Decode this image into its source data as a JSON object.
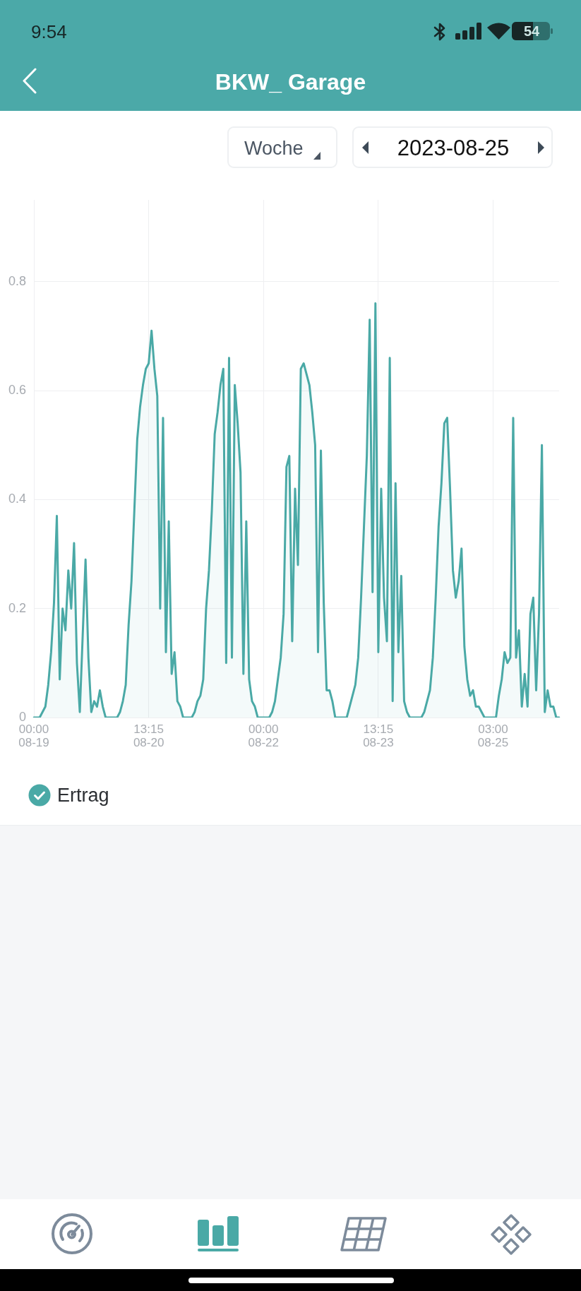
{
  "chart_data": {
    "type": "area",
    "title": "BKW_ Garage",
    "annotations": [
      "9:54",
      "54",
      "Woche",
      "2023-08-25"
    ],
    "categories": [
      "00:00 08-19",
      null,
      null,
      null,
      null,
      null,
      null,
      null,
      null,
      null,
      null,
      null,
      null,
      null,
      null,
      null,
      null,
      null,
      null,
      null,
      null,
      null,
      null,
      null,
      null,
      null,
      null,
      null,
      null,
      null,
      null,
      null,
      null,
      null,
      null,
      null,
      null,
      null,
      null,
      null,
      "13:15 08-20",
      null,
      null,
      null,
      null,
      null,
      null,
      null,
      null,
      null,
      null,
      null,
      null,
      null,
      null,
      null,
      null,
      null,
      null,
      null,
      null,
      null,
      null,
      null,
      null,
      null,
      null,
      null,
      null,
      null,
      null,
      null,
      null,
      null,
      null,
      null,
      null,
      null,
      null,
      null,
      "00:00 08-22",
      null,
      null,
      null,
      null,
      null,
      null,
      null,
      null,
      null,
      null,
      null,
      null,
      null,
      null,
      null,
      null,
      null,
      null,
      null,
      null,
      null,
      null,
      null,
      null,
      null,
      null,
      null,
      null,
      null,
      null,
      null,
      null,
      null,
      null,
      null,
      null,
      null,
      null,
      null,
      "13:15 08-23",
      null,
      null,
      null,
      null,
      null,
      null,
      null,
      null,
      null,
      null,
      null,
      null,
      null,
      null,
      null,
      null,
      null,
      null,
      null,
      null,
      null,
      null,
      null,
      null,
      null,
      null,
      null,
      null,
      null,
      null,
      null,
      null,
      null,
      null,
      null,
      null,
      null,
      null,
      null,
      "03:00 08-25",
      null,
      null,
      null,
      null,
      null,
      null,
      null,
      null,
      null,
      null,
      null,
      null,
      null,
      null,
      null,
      null,
      null,
      null,
      null,
      null,
      null,
      null,
      null
    ],
    "series": [
      {
        "name": "Ertrag",
        "color": "#4aa9a6",
        "values": [
          0,
          0,
          0,
          0.01,
          0.02,
          0.06,
          0.12,
          0.21,
          0.37,
          0.07,
          0.2,
          0.16,
          0.27,
          0.2,
          0.32,
          0.1,
          0.01,
          0.15,
          0.29,
          0.11,
          0.01,
          0.03,
          0.02,
          0.05,
          0.02,
          0,
          0,
          0,
          0,
          0,
          0.01,
          0.03,
          0.06,
          0.17,
          0.25,
          0.38,
          0.51,
          0.57,
          0.61,
          0.64,
          0.65,
          0.71,
          0.64,
          0.59,
          0.2,
          0.55,
          0.12,
          0.36,
          0.08,
          0.12,
          0.03,
          0.02,
          0,
          0,
          0,
          0,
          0.01,
          0.03,
          0.04,
          0.07,
          0.2,
          0.27,
          0.38,
          0.52,
          0.56,
          0.61,
          0.64,
          0.1,
          0.66,
          0.11,
          0.61,
          0.54,
          0.45,
          0.08,
          0.36,
          0.07,
          0.03,
          0.02,
          0,
          0,
          0,
          0,
          0,
          0.01,
          0.03,
          0.07,
          0.11,
          0.19,
          0.46,
          0.48,
          0.14,
          0.42,
          0.28,
          0.64,
          0.65,
          0.63,
          0.61,
          0.56,
          0.5,
          0.12,
          0.49,
          0.21,
          0.05,
          0.05,
          0.03,
          0,
          0,
          0,
          0,
          0,
          0.02,
          0.04,
          0.06,
          0.11,
          0.22,
          0.35,
          0.48,
          0.73,
          0.23,
          0.76,
          0.12,
          0.42,
          0.22,
          0.14,
          0.66,
          0.03,
          0.43,
          0.12,
          0.26,
          0.03,
          0.01,
          0,
          0,
          0,
          0,
          0,
          0.01,
          0.03,
          0.05,
          0.11,
          0.22,
          0.35,
          0.43,
          0.54,
          0.55,
          0.42,
          0.27,
          0.22,
          0.25,
          0.31,
          0.13,
          0.07,
          0.04,
          0.05,
          0.02,
          0.02,
          0.01,
          0,
          0,
          0,
          0,
          0,
          0.04,
          0.07,
          0.12,
          0.1,
          0.11,
          0.55,
          0.11,
          0.16,
          0.02,
          0.08,
          0.02,
          0.19,
          0.22,
          0.05,
          0.19,
          0.5,
          0.01,
          0.05,
          0.02,
          0.02,
          0,
          0
        ]
      }
    ],
    "ylim": [
      0,
      0.95
    ],
    "yticks": [
      0,
      0.2,
      0.4,
      0.6,
      0.8
    ],
    "grid": true,
    "legend": "bottom left"
  }
}
